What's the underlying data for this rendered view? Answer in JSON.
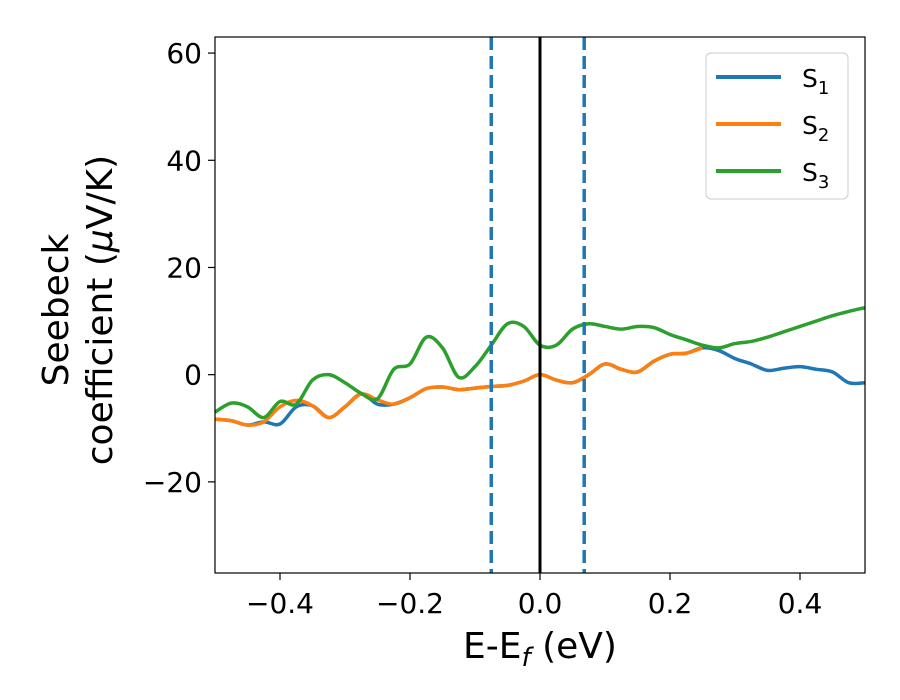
{
  "chart_data": {
    "type": "line",
    "xlabel": "E-E",
    "xlabel_sub": "f",
    "xlabel_unit": " (eV)",
    "ylabel_line1": "Seebeck",
    "ylabel_line2": "coefficient  (",
    "ylabel_mu": "μ",
    "ylabel_unit": "V/K)",
    "xlim": [
      -0.5,
      0.5
    ],
    "ylim": [
      -37,
      63
    ],
    "xticks": [
      -0.4,
      -0.2,
      0.0,
      0.2,
      0.4
    ],
    "xtick_labels": [
      "−0.4",
      "−0.2",
      "0.0",
      "0.2",
      "0.4"
    ],
    "yticks": [
      -20,
      0,
      20,
      40,
      60
    ],
    "ytick_labels": [
      "−20",
      "0",
      "20",
      "40",
      "60"
    ],
    "grid": false,
    "legend_position": "top-right",
    "vlines": [
      {
        "x": -0.075,
        "style": "dashed",
        "color": "#1f77b4"
      },
      {
        "x": 0.0,
        "style": "solid",
        "color": "#000000"
      },
      {
        "x": 0.068,
        "style": "dashed",
        "color": "#1f77b4"
      }
    ],
    "series": [
      {
        "name": "S",
        "sub": "1",
        "color": "#1f77b4",
        "x": [
          -0.5,
          -0.475,
          -0.45,
          -0.425,
          -0.4,
          -0.375,
          -0.35,
          -0.325,
          -0.3,
          -0.275,
          -0.25,
          -0.225,
          -0.2,
          -0.175,
          -0.15,
          -0.125,
          -0.1,
          -0.075,
          -0.05,
          -0.025,
          0.0,
          0.025,
          0.05,
          0.075,
          0.1,
          0.125,
          0.15,
          0.175,
          0.2,
          0.225,
          0.25,
          0.275,
          0.3,
          0.325,
          0.35,
          0.375,
          0.4,
          0.425,
          0.45,
          0.475,
          0.5
        ],
        "y": [
          -8.3,
          -8.6,
          -9.4,
          -8.8,
          -9.2,
          -6.0,
          -5.8,
          -8.0,
          -6.0,
          -3.6,
          -5.5,
          -5.5,
          -4.3,
          -2.6,
          -2.3,
          -2.8,
          -2.5,
          -2.2,
          -2.0,
          -1.2,
          0.0,
          -1.0,
          -1.5,
          0.0,
          2.0,
          1.0,
          0.5,
          2.5,
          3.8,
          4.0,
          5.0,
          4.5,
          3.0,
          2.0,
          0.8,
          1.2,
          1.5,
          1.0,
          0.5,
          -1.5,
          -1.5
        ]
      },
      {
        "name": "S",
        "sub": "2",
        "color": "#ff7f0e",
        "x": [
          -0.5,
          -0.475,
          -0.45,
          -0.425,
          -0.4,
          -0.375,
          -0.35,
          -0.325,
          -0.3,
          -0.275,
          -0.25,
          -0.225,
          -0.2,
          -0.175,
          -0.15,
          -0.125,
          -0.1,
          -0.075,
          -0.05,
          -0.025,
          0.0,
          0.025,
          0.05,
          0.075,
          0.1,
          0.125,
          0.15,
          0.175,
          0.2,
          0.225,
          0.25
        ],
        "y": [
          -8.3,
          -8.6,
          -9.4,
          -8.8,
          -6.0,
          -4.8,
          -5.8,
          -8.0,
          -6.0,
          -3.6,
          -4.7,
          -5.5,
          -4.3,
          -2.6,
          -2.3,
          -2.8,
          -2.5,
          -2.2,
          -2.0,
          -1.2,
          0.0,
          -1.0,
          -1.5,
          0.0,
          2.0,
          1.0,
          0.5,
          2.5,
          3.8,
          4.0,
          5.0
        ]
      },
      {
        "name": "S",
        "sub": "3",
        "color": "#2ca02c",
        "x": [
          -0.5,
          -0.475,
          -0.45,
          -0.425,
          -0.4,
          -0.375,
          -0.35,
          -0.325,
          -0.3,
          -0.275,
          -0.25,
          -0.225,
          -0.2,
          -0.175,
          -0.15,
          -0.125,
          -0.1,
          -0.075,
          -0.05,
          -0.025,
          0.0,
          0.025,
          0.05,
          0.075,
          0.1,
          0.125,
          0.15,
          0.175,
          0.2,
          0.225,
          0.25,
          0.275,
          0.3,
          0.325,
          0.35,
          0.375,
          0.4,
          0.425,
          0.45,
          0.475,
          0.5
        ],
        "y": [
          -7.0,
          -5.3,
          -6.0,
          -8.0,
          -5.0,
          -5.5,
          -1.0,
          0.0,
          -1.5,
          -3.5,
          -4.5,
          1.0,
          2.0,
          7.0,
          5.0,
          -0.5,
          1.5,
          5.5,
          9.5,
          9.0,
          5.5,
          5.5,
          8.5,
          9.5,
          9.0,
          8.5,
          9.0,
          8.8,
          7.5,
          6.5,
          5.5,
          5.0,
          5.8,
          6.2,
          7.0,
          8.0,
          9.0,
          10.0,
          11.0,
          11.8,
          12.5
        ]
      }
    ]
  }
}
